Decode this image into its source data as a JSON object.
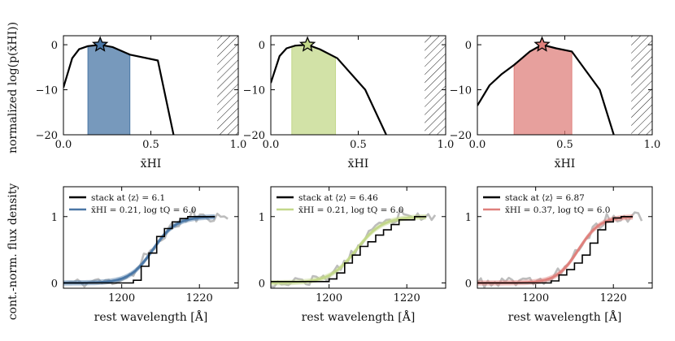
{
  "figure": {
    "top_ylabel": "normalized log(p(x̄HI))",
    "bottom_ylabel": "cont.-norm. flux density",
    "top_xlabel": "x̄HI",
    "bottom_xlabel": "rest wavelength [Å]"
  },
  "chart_data": [
    {
      "id": "top-1",
      "type": "line",
      "color": "#4a77a6",
      "x": [
        0.0,
        0.05,
        0.09,
        0.14,
        0.21,
        0.28,
        0.38,
        0.54,
        0.63
      ],
      "y": [
        -9.5,
        -3,
        -1,
        -0.3,
        0,
        -0.5,
        -2.2,
        -3.5,
        -20
      ],
      "peak": {
        "x": 0.21,
        "y": 0
      },
      "shade": [
        0.14,
        0.38
      ],
      "hatch_from": 0.88,
      "xlim": [
        0,
        1
      ],
      "ylim": [
        -20,
        2
      ],
      "xticks": [
        0,
        0.5,
        1
      ],
      "xticklabels": [
        "0.0",
        "0.5",
        "1.0"
      ],
      "yticks": [
        0,
        -10,
        -20
      ],
      "yticklabels": [
        "0",
        "−10",
        "−20"
      ]
    },
    {
      "id": "top-2",
      "type": "line",
      "color": "#c3d88a",
      "x": [
        0.0,
        0.05,
        0.09,
        0.14,
        0.21,
        0.28,
        0.38,
        0.54,
        0.66
      ],
      "y": [
        -8.5,
        -2.5,
        -0.8,
        -0.2,
        0,
        -1,
        -3,
        -10,
        -20
      ],
      "peak": {
        "x": 0.21,
        "y": 0
      },
      "shade": [
        0.12,
        0.37
      ],
      "hatch_from": 0.88,
      "xlim": [
        0,
        1
      ],
      "ylim": [
        -20,
        2
      ],
      "xticks": [
        0,
        0.5,
        1
      ],
      "xticklabels": [
        "0.0",
        "0.5",
        "1.0"
      ],
      "yticks": [
        0,
        -10,
        -20
      ],
      "yticklabels": [
        "0",
        "−10",
        "−20"
      ]
    },
    {
      "id": "top-3",
      "type": "line",
      "color": "#df807c",
      "x": [
        0.0,
        0.07,
        0.14,
        0.21,
        0.3,
        0.37,
        0.45,
        0.54,
        0.7,
        0.78
      ],
      "y": [
        -13.5,
        -9,
        -6.5,
        -4.5,
        -1.5,
        0,
        -0.8,
        -1.5,
        -10,
        -20
      ],
      "peak": {
        "x": 0.37,
        "y": 0
      },
      "shade": [
        0.21,
        0.54
      ],
      "hatch_from": 0.88,
      "xlim": [
        0,
        1
      ],
      "ylim": [
        -20,
        2
      ],
      "xticks": [
        0,
        0.5,
        1
      ],
      "xticklabels": [
        "0.0",
        "0.5",
        "1.0"
      ],
      "yticks": [
        0,
        -10,
        -20
      ],
      "yticklabels": [
        "0",
        "−10",
        "−20"
      ]
    },
    {
      "id": "bottom-1",
      "type": "line",
      "color": "#4a77a6",
      "xlim": [
        1185,
        1230
      ],
      "ylim": [
        -0.08,
        1.45
      ],
      "xticks": [
        1200,
        1220
      ],
      "xticklabels": [
        "1200",
        "1220"
      ],
      "yticks": [
        0,
        1
      ],
      "yticklabels": [
        "0",
        "1"
      ],
      "model_center": 1208,
      "model_width": 3.0,
      "model_end": 1224,
      "stack_x": [
        1185,
        1203,
        1205,
        1207,
        1209,
        1211,
        1213,
        1215,
        1217,
        1219,
        1221,
        1224
      ],
      "stack_y": [
        0.0,
        0.04,
        0.25,
        0.45,
        0.7,
        0.82,
        0.92,
        0.97,
        1.0,
        1.0,
        1.0,
        1.0
      ],
      "raw_seed": 11,
      "raw_end": 1228,
      "legend": [
        {
          "text": "stack at ⟨z⟩ = 6.1",
          "color": "#000000"
        },
        {
          "text": "x̄HI = 0.21, log tQ = 6.0",
          "color": "#4a77a6"
        }
      ]
    },
    {
      "id": "bottom-2",
      "type": "line",
      "color": "#c3d88a",
      "xlim": [
        1185,
        1230
      ],
      "ylim": [
        -0.08,
        1.45
      ],
      "xticks": [
        1200,
        1220
      ],
      "xticklabels": [
        "1200",
        "1220"
      ],
      "yticks": [
        0,
        1
      ],
      "yticklabels": [
        "0",
        "1"
      ],
      "model_center": 1207,
      "model_width": 3.4,
      "model_end": 1225,
      "stack_x": [
        1185,
        1200,
        1202,
        1204,
        1206,
        1208,
        1210,
        1212,
        1214,
        1216,
        1218,
        1222,
        1225
      ],
      "stack_y": [
        0.02,
        0.06,
        0.15,
        0.3,
        0.42,
        0.55,
        0.62,
        0.72,
        0.8,
        0.88,
        0.95,
        1.0,
        1.0
      ],
      "raw_seed": 23,
      "raw_end": 1228,
      "legend": [
        {
          "text": "stack at ⟨z⟩ = 6.46",
          "color": "#000000"
        },
        {
          "text": "x̄HI = 0.21, log tQ = 6.0",
          "color": "#c3d88a"
        }
      ]
    },
    {
      "id": "bottom-3",
      "type": "line",
      "color": "#df807c",
      "xlim": [
        1185,
        1230
      ],
      "ylim": [
        -0.08,
        1.45
      ],
      "xticks": [
        1200,
        1220
      ],
      "xticklabels": [
        "1200",
        "1220"
      ],
      "yticks": [
        0,
        1
      ],
      "yticklabels": [
        "0",
        "1"
      ],
      "model_center": 1211,
      "model_width": 2.8,
      "model_end": 1225,
      "stack_x": [
        1185,
        1204,
        1206,
        1208,
        1210,
        1212,
        1214,
        1216,
        1218,
        1220,
        1222,
        1225
      ],
      "stack_y": [
        0.0,
        0.03,
        0.12,
        0.2,
        0.3,
        0.42,
        0.6,
        0.8,
        0.92,
        0.98,
        1.0,
        1.0
      ],
      "raw_seed": 37,
      "raw_end": 1228,
      "legend": [
        {
          "text": "stack at ⟨z⟩ = 6.87",
          "color": "#000000"
        },
        {
          "text": "x̄HI = 0.37, log tQ = 6.0",
          "color": "#df807c"
        }
      ]
    }
  ]
}
